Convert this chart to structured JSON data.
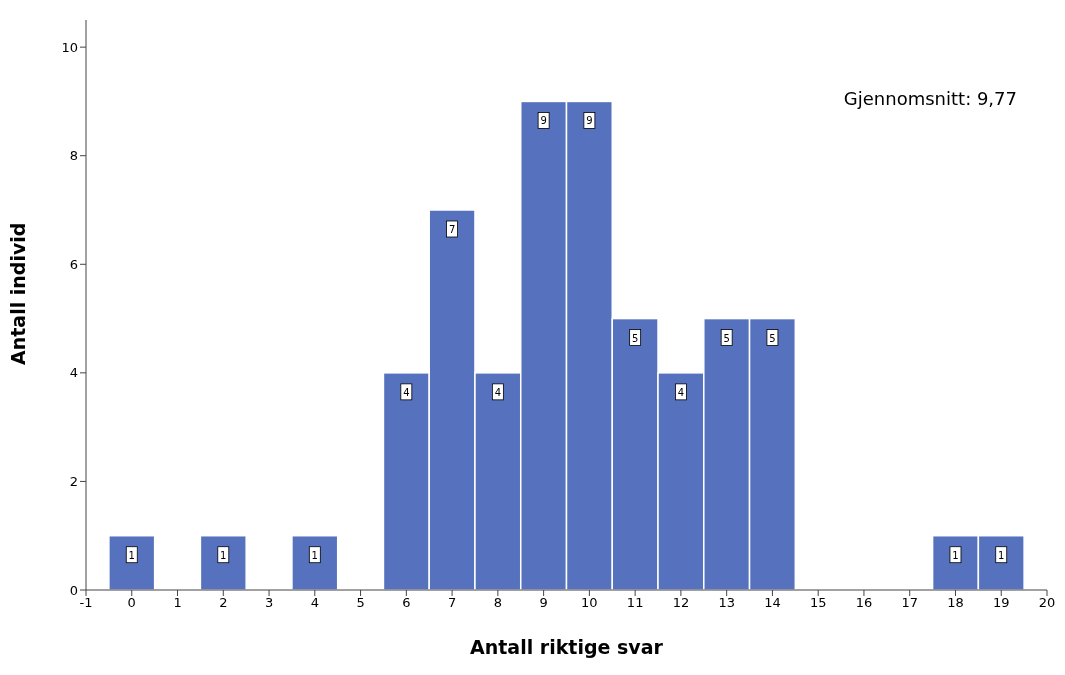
{
  "chart_data": {
    "type": "histogram",
    "xlabel": "Antall riktige svar",
    "ylabel": "Antall individ",
    "annotations": [
      "Gjennomsnitt: 9,77"
    ],
    "bins": [
      -0.5,
      0.5,
      1.5,
      2.5,
      3.5,
      4.5,
      5.5,
      6.5,
      7.5,
      8.5,
      9.5,
      10.5,
      11.5,
      12.5,
      13.5,
      14.5,
      15.5,
      16.5,
      17.5,
      18.5,
      19.5
    ],
    "values": [
      1,
      0,
      1,
      0,
      1,
      0,
      4,
      7,
      4,
      9,
      9,
      5,
      4,
      5,
      5,
      0,
      0,
      0,
      1,
      1
    ],
    "value_labels": [
      "1",
      null,
      "1",
      null,
      "1",
      null,
      "4",
      "7",
      "4",
      "9",
      "9",
      "5",
      "4",
      "5",
      "5",
      null,
      null,
      null,
      "1",
      "1"
    ],
    "color": "#5672be",
    "xlim": [
      -1,
      20
    ],
    "xticks": [
      -1,
      0,
      1,
      2,
      3,
      4,
      5,
      6,
      7,
      8,
      9,
      10,
      11,
      12,
      13,
      14,
      15,
      16,
      17,
      18,
      19,
      20
    ],
    "ylim": [
      0,
      10.5
    ],
    "yticks": [
      0,
      2,
      4,
      6,
      8,
      10
    ]
  }
}
